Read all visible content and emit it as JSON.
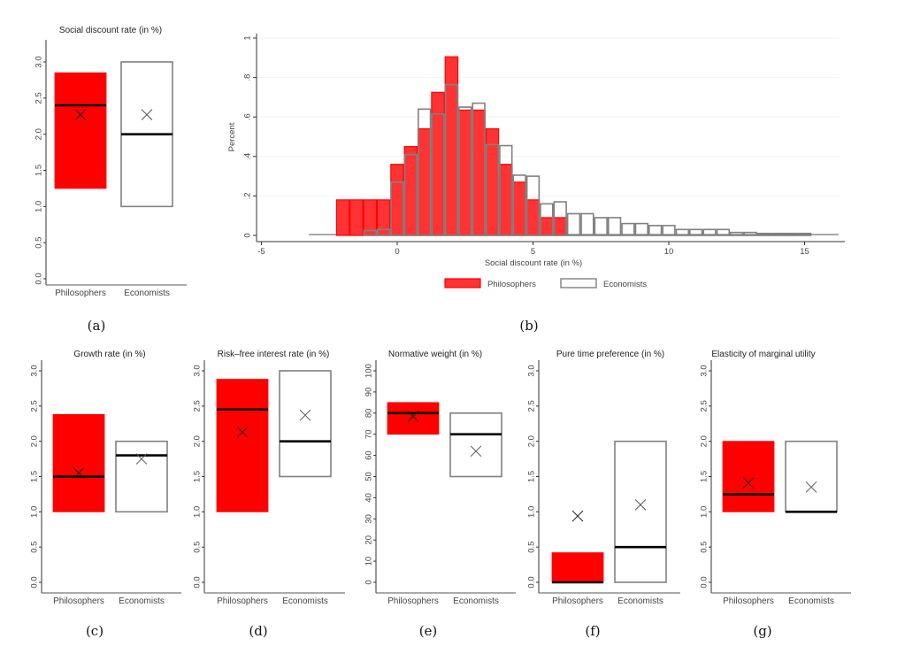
{
  "colors": {
    "philosophers": "#ff0000",
    "philosophers_hist": "#ff3333",
    "economists_edge": "#808080",
    "median": "#000000",
    "grid": "#eef4f4"
  },
  "chart_data": [
    {
      "id": "a",
      "caption": "(a)",
      "type": "box-range",
      "title": "Social discount rate (in %)",
      "categories": [
        "Philosophers",
        "Economists"
      ],
      "ylim": [
        0,
        3.0
      ],
      "yticks": [
        "0.0",
        "0.5",
        "1.0",
        "1.5",
        "2.0",
        "2.5",
        "3.0"
      ],
      "yticks_values": [
        0,
        0.5,
        1.0,
        1.5,
        2.0,
        2.5,
        3.0
      ],
      "series": [
        {
          "name": "Philosophers",
          "low": 1.25,
          "high": 2.85,
          "median": 2.4,
          "mean": 2.27
        },
        {
          "name": "Economists",
          "low": 1.0,
          "high": 3.0,
          "median": 2.0,
          "mean": 2.27
        }
      ]
    },
    {
      "id": "b",
      "caption": "(b)",
      "type": "histogram",
      "title": "",
      "xlabel": "Social discount rate (in %)",
      "ylabel": "Percent",
      "xlim": [
        -5.5,
        16.5
      ],
      "ylim": [
        0,
        1
      ],
      "xticks": [
        "-5",
        "0",
        "5",
        "10",
        "15"
      ],
      "xticks_values": [
        -5,
        0,
        5,
        10,
        15
      ],
      "yticks": [
        "0",
        ".2",
        ".4",
        ".6",
        ".8",
        "1"
      ],
      "yticks_values": [
        0,
        0.2,
        0.4,
        0.6,
        0.8,
        1
      ],
      "grid": true,
      "legend_position": "bottom",
      "legend": [
        "Philosophers",
        "Economists"
      ],
      "bin_width": 0.5,
      "series": [
        {
          "name": "Philosophers",
          "bin_starts": [
            -2.25,
            -1.75,
            -1.25,
            -0.75,
            -0.25,
            0.25,
            0.75,
            1.25,
            1.75,
            2.25,
            2.75,
            3.25,
            3.75,
            4.25,
            4.75,
            5.25,
            5.75
          ],
          "values": [
            0.18,
            0.18,
            0.18,
            0.18,
            0.36,
            0.45,
            0.54,
            0.725,
            0.905,
            0.635,
            0.635,
            0.54,
            0.36,
            0.27,
            0.18,
            0.09,
            0.09
          ]
        },
        {
          "name": "Economists",
          "bin_starts": [
            -3.25,
            -2.75,
            -2.25,
            -1.75,
            -1.25,
            -0.75,
            -0.25,
            0.25,
            0.75,
            1.25,
            1.75,
            2.25,
            2.75,
            3.25,
            3.75,
            4.25,
            4.75,
            5.25,
            5.75,
            6.25,
            6.75,
            7.25,
            7.75,
            8.25,
            8.75,
            9.25,
            9.75,
            10.25,
            10.75,
            11.25,
            11.75,
            12.25,
            12.75,
            13.25,
            13.75,
            14.25,
            14.75,
            15.25,
            15.75
          ],
          "values": [
            0.005,
            0.005,
            0.005,
            0.005,
            0.025,
            0.03,
            0.27,
            0.41,
            0.64,
            0.615,
            0.764,
            0.65,
            0.67,
            0.46,
            0.455,
            0.305,
            0.3,
            0.16,
            0.17,
            0.11,
            0.11,
            0.09,
            0.09,
            0.06,
            0.06,
            0.05,
            0.05,
            0.03,
            0.03,
            0.03,
            0.03,
            0.015,
            0.015,
            0.01,
            0.01,
            0.01,
            0.01,
            0.005,
            0.005
          ]
        }
      ]
    },
    {
      "id": "c",
      "caption": "(c)",
      "type": "box-range",
      "title": "Growth rate (in %)",
      "categories": [
        "Philosophers",
        "Economists"
      ],
      "ylim": [
        0,
        3.0
      ],
      "yticks": [
        "0.0",
        "0.5",
        "1.0",
        "1.5",
        "2.0",
        "2.5",
        "3.0"
      ],
      "yticks_values": [
        0,
        0.5,
        1.0,
        1.5,
        2.0,
        2.5,
        3.0
      ],
      "series": [
        {
          "name": "Philosophers",
          "low": 1.0,
          "high": 2.38,
          "median": 1.5,
          "mean": 1.55
        },
        {
          "name": "Economists",
          "low": 1.0,
          "high": 2.0,
          "median": 1.8,
          "mean": 1.75
        }
      ]
    },
    {
      "id": "d",
      "caption": "(d)",
      "type": "box-range",
      "title": "Risk–free interest rate (in %)",
      "categories": [
        "Philosophers",
        "Economists"
      ],
      "ylim": [
        0,
        3.0
      ],
      "yticks": [
        "0.0",
        "0.5",
        "1.0",
        "1.5",
        "2.0",
        "2.5",
        "3.0"
      ],
      "yticks_values": [
        0,
        0.5,
        1.0,
        1.5,
        2.0,
        2.5,
        3.0
      ],
      "series": [
        {
          "name": "Philosophers",
          "low": 1.0,
          "high": 2.88,
          "median": 2.45,
          "mean": 2.13
        },
        {
          "name": "Economists",
          "low": 1.5,
          "high": 3.0,
          "median": 2.0,
          "mean": 2.37
        }
      ]
    },
    {
      "id": "e",
      "caption": "(e)",
      "type": "box-range",
      "title": "Normative weight (in %)",
      "categories": [
        "Philosophers",
        "Economists"
      ],
      "ylim": [
        0,
        100
      ],
      "yticks": [
        "0",
        "10",
        "20",
        "30",
        "40",
        "50",
        "60",
        "70",
        "80",
        "90",
        "100"
      ],
      "yticks_values": [
        0,
        10,
        20,
        30,
        40,
        50,
        60,
        70,
        80,
        90,
        100
      ],
      "series": [
        {
          "name": "Philosophers",
          "low": 70,
          "high": 85,
          "median": 80,
          "mean": 78.5
        },
        {
          "name": "Economists",
          "low": 50,
          "high": 80,
          "median": 70,
          "mean": 62
        }
      ]
    },
    {
      "id": "f",
      "caption": "(f)",
      "type": "box-range",
      "title": "Pure time preference (in %)",
      "categories": [
        "Philosophers",
        "Economists"
      ],
      "ylim": [
        0,
        3.0
      ],
      "yticks": [
        "0.0",
        "0.5",
        "1.0",
        "1.5",
        "2.0",
        "2.5",
        "3.0"
      ],
      "yticks_values": [
        0,
        0.5,
        1.0,
        1.5,
        2.0,
        2.5,
        3.0
      ],
      "series": [
        {
          "name": "Philosophers",
          "low": 0.0,
          "high": 0.42,
          "median": 0.0,
          "mean": 0.94
        },
        {
          "name": "Economists",
          "low": 0.0,
          "high": 2.0,
          "median": 0.5,
          "mean": 1.1
        }
      ]
    },
    {
      "id": "g",
      "caption": "(g)",
      "type": "box-range",
      "title": "Elasticity of marginal utility",
      "categories": [
        "Philosophers",
        "Economists"
      ],
      "ylim": [
        0,
        3.0
      ],
      "yticks": [
        "0.0",
        "0.5",
        "1.0",
        "1.5",
        "2.0",
        "2.5",
        "3.0"
      ],
      "yticks_values": [
        0,
        0.5,
        1.0,
        1.5,
        2.0,
        2.5,
        3.0
      ],
      "series": [
        {
          "name": "Philosophers",
          "low": 1.0,
          "high": 2.0,
          "median": 1.25,
          "mean": 1.41
        },
        {
          "name": "Economists",
          "low": 1.0,
          "high": 2.0,
          "median": 1.0,
          "mean": 1.35
        }
      ]
    }
  ]
}
